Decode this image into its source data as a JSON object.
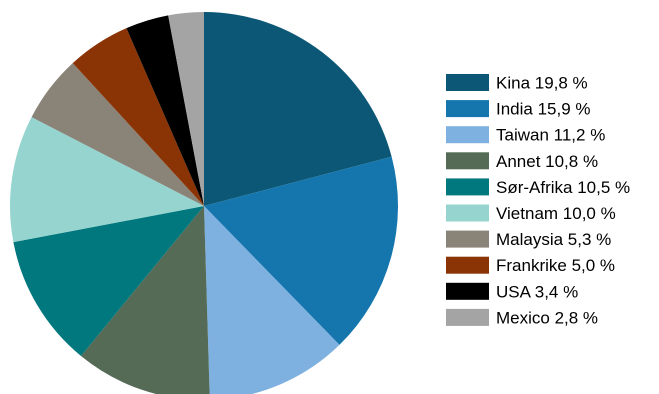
{
  "chart_data": {
    "type": "pie",
    "title": "",
    "legend_position": "right",
    "start_angle_deg": 90,
    "direction": "clockwise",
    "slices": [
      {
        "label": "Kina 19,8 %",
        "value": 19.8,
        "color": "#0b5775"
      },
      {
        "label": "India 15,9 %",
        "value": 15.9,
        "color": "#1476ad"
      },
      {
        "label": "Taiwan 11,2 %",
        "value": 11.2,
        "color": "#7eb0e0"
      },
      {
        "label": "Annet 10,8 %",
        "value": 10.8,
        "color": "#556b56"
      },
      {
        "label": "Sør-Afrika 10,5 %",
        "value": 10.5,
        "color": "#00787d"
      },
      {
        "label": "Vietnam 10,0 %",
        "value": 10.0,
        "color": "#95d4cf"
      },
      {
        "label": "Malaysia 5,3 %",
        "value": 5.3,
        "color": "#8a8378"
      },
      {
        "label": "Frankrike 5,0 %",
        "value": 5.0,
        "color": "#8a3405"
      },
      {
        "label": "USA 3,4 %",
        "value": 3.4,
        "color": "#000000"
      },
      {
        "label": "Mexico 2,8 %",
        "value": 2.8,
        "color": "#a4a4a4"
      }
    ]
  }
}
